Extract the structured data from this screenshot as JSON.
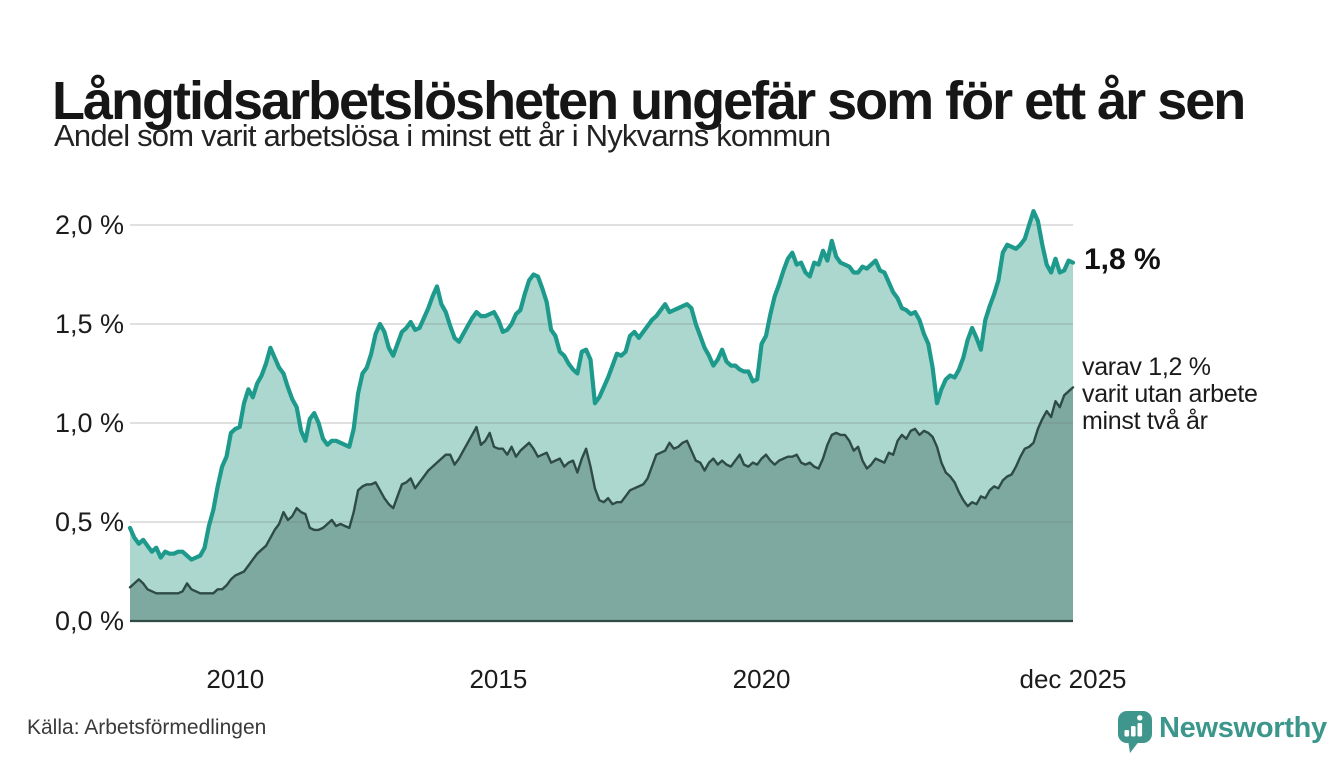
{
  "header": {
    "title": "Långtidsarbetslösheten ungefär som för ett år sen",
    "subtitle": "Andel som varit arbetslösa i minst ett år i Nykvarns kommun"
  },
  "annotations": {
    "latest_total": "1,8 %",
    "two_year_note": [
      "varav 1,2 %",
      "varit utan arbete",
      "minst två år"
    ]
  },
  "footer": {
    "source": "Källa: Arbetsförmedlingen",
    "brand": "Newsworthy"
  },
  "colors": {
    "accent_teal": "#1e9a8c",
    "fill_light": "#abd7ce",
    "line_dark": "#2e4b45",
    "fill_dark": "#7ea9a1",
    "brand_teal": "#3b968b",
    "grid": "#dcdcdc",
    "text": "#1c1c1c"
  },
  "chart_data": {
    "type": "area",
    "frequency": "monthly",
    "x_range_years": [
      2008,
      2026
    ],
    "x_end_label": "dec 2025",
    "ylim": [
      0,
      2.1
    ],
    "grid": true,
    "x_ticks": [
      {
        "label": "2010",
        "month": 24
      },
      {
        "label": "2015",
        "month": 84
      },
      {
        "label": "2020",
        "month": 144
      },
      {
        "label": "dec 2025",
        "month": 215
      }
    ],
    "y_ticks": [
      {
        "label": "0,0 %",
        "value": 0
      },
      {
        "label": "0,5 %",
        "value": 0.5
      },
      {
        "label": "1,0 %",
        "value": 1
      },
      {
        "label": "1,5 %",
        "value": 1.5
      },
      {
        "label": "2,0 %",
        "value": 2
      }
    ],
    "series": [
      {
        "name": "Andel arbetslösa minst ett år",
        "line_color": "#1e9a8c",
        "fill_color": "#abd7ce",
        "line_width": 4.2,
        "latest_value": 1.8,
        "values": [
          0.47,
          0.42,
          0.39,
          0.41,
          0.38,
          0.35,
          0.37,
          0.32,
          0.35,
          0.34,
          0.34,
          0.35,
          0.35,
          0.33,
          0.31,
          0.32,
          0.33,
          0.37,
          0.48,
          0.56,
          0.68,
          0.78,
          0.83,
          0.95,
          0.97,
          0.98,
          1.1,
          1.17,
          1.13,
          1.2,
          1.24,
          1.3,
          1.38,
          1.33,
          1.28,
          1.25,
          1.18,
          1.12,
          1.08,
          0.96,
          0.91,
          1.02,
          1.05,
          1.0,
          0.92,
          0.89,
          0.91,
          0.91,
          0.9,
          0.89,
          0.88,
          0.97,
          1.15,
          1.25,
          1.28,
          1.35,
          1.45,
          1.5,
          1.46,
          1.38,
          1.34,
          1.4,
          1.46,
          1.48,
          1.51,
          1.47,
          1.48,
          1.53,
          1.58,
          1.64,
          1.69,
          1.6,
          1.56,
          1.49,
          1.43,
          1.41,
          1.45,
          1.49,
          1.53,
          1.56,
          1.54,
          1.54,
          1.55,
          1.56,
          1.52,
          1.46,
          1.47,
          1.5,
          1.55,
          1.57,
          1.65,
          1.72,
          1.75,
          1.74,
          1.68,
          1.61,
          1.47,
          1.44,
          1.36,
          1.34,
          1.3,
          1.27,
          1.25,
          1.36,
          1.37,
          1.32,
          1.1,
          1.13,
          1.18,
          1.23,
          1.29,
          1.35,
          1.34,
          1.36,
          1.44,
          1.46,
          1.43,
          1.46,
          1.49,
          1.52,
          1.54,
          1.57,
          1.6,
          1.56,
          1.57,
          1.58,
          1.59,
          1.6,
          1.58,
          1.5,
          1.44,
          1.38,
          1.34,
          1.29,
          1.32,
          1.37,
          1.31,
          1.29,
          1.29,
          1.27,
          1.26,
          1.26,
          1.21,
          1.22,
          1.4,
          1.44,
          1.55,
          1.64,
          1.7,
          1.77,
          1.83,
          1.86,
          1.8,
          1.81,
          1.76,
          1.74,
          1.81,
          1.8,
          1.87,
          1.82,
          1.92,
          1.84,
          1.81,
          1.8,
          1.79,
          1.76,
          1.76,
          1.79,
          1.78,
          1.8,
          1.82,
          1.77,
          1.76,
          1.71,
          1.66,
          1.63,
          1.58,
          1.57,
          1.55,
          1.56,
          1.52,
          1.45,
          1.4,
          1.28,
          1.1,
          1.17,
          1.22,
          1.24,
          1.23,
          1.27,
          1.33,
          1.42,
          1.48,
          1.43,
          1.37,
          1.52,
          1.59,
          1.65,
          1.72,
          1.86,
          1.9,
          1.89,
          1.88,
          1.9,
          1.93,
          2.0,
          2.07,
          2.02,
          1.9,
          1.8,
          1.76,
          1.83,
          1.76,
          1.77,
          1.82,
          1.81
        ]
      },
      {
        "name": "Andel utan arbete minst två år",
        "line_color": "#2e4b45",
        "fill_color": "#7ea9a1",
        "line_width": 2.4,
        "latest_value": 1.2,
        "values": [
          0.17,
          0.19,
          0.21,
          0.19,
          0.16,
          0.15,
          0.14,
          0.14,
          0.14,
          0.14,
          0.14,
          0.14,
          0.15,
          0.19,
          0.16,
          0.15,
          0.14,
          0.14,
          0.14,
          0.14,
          0.16,
          0.16,
          0.18,
          0.21,
          0.23,
          0.24,
          0.25,
          0.28,
          0.31,
          0.34,
          0.36,
          0.38,
          0.42,
          0.46,
          0.49,
          0.55,
          0.51,
          0.53,
          0.57,
          0.55,
          0.54,
          0.47,
          0.46,
          0.46,
          0.47,
          0.49,
          0.51,
          0.48,
          0.49,
          0.48,
          0.47,
          0.55,
          0.66,
          0.68,
          0.69,
          0.69,
          0.7,
          0.66,
          0.62,
          0.59,
          0.57,
          0.63,
          0.69,
          0.7,
          0.72,
          0.67,
          0.7,
          0.73,
          0.76,
          0.78,
          0.8,
          0.82,
          0.84,
          0.84,
          0.79,
          0.82,
          0.86,
          0.9,
          0.94,
          0.98,
          0.89,
          0.91,
          0.95,
          0.88,
          0.87,
          0.87,
          0.84,
          0.88,
          0.83,
          0.86,
          0.88,
          0.9,
          0.87,
          0.83,
          0.84,
          0.85,
          0.8,
          0.81,
          0.82,
          0.78,
          0.8,
          0.81,
          0.75,
          0.82,
          0.87,
          0.78,
          0.67,
          0.61,
          0.6,
          0.62,
          0.59,
          0.6,
          0.6,
          0.63,
          0.66,
          0.67,
          0.68,
          0.69,
          0.72,
          0.78,
          0.84,
          0.85,
          0.86,
          0.9,
          0.87,
          0.88,
          0.9,
          0.91,
          0.86,
          0.81,
          0.8,
          0.76,
          0.8,
          0.82,
          0.79,
          0.81,
          0.79,
          0.78,
          0.81,
          0.84,
          0.79,
          0.78,
          0.8,
          0.79,
          0.82,
          0.84,
          0.81,
          0.79,
          0.81,
          0.82,
          0.83,
          0.83,
          0.84,
          0.8,
          0.79,
          0.8,
          0.78,
          0.77,
          0.82,
          0.89,
          0.94,
          0.95,
          0.94,
          0.94,
          0.91,
          0.86,
          0.88,
          0.81,
          0.77,
          0.79,
          0.82,
          0.81,
          0.8,
          0.85,
          0.84,
          0.91,
          0.94,
          0.92,
          0.96,
          0.97,
          0.94,
          0.96,
          0.95,
          0.93,
          0.88,
          0.8,
          0.75,
          0.73,
          0.7,
          0.65,
          0.61,
          0.58,
          0.6,
          0.59,
          0.63,
          0.62,
          0.66,
          0.68,
          0.67,
          0.71,
          0.73,
          0.74,
          0.78,
          0.83,
          0.87,
          0.88,
          0.9,
          0.97,
          1.02,
          1.06,
          1.03,
          1.11,
          1.08,
          1.14,
          1.16,
          1.18
        ]
      }
    ]
  }
}
